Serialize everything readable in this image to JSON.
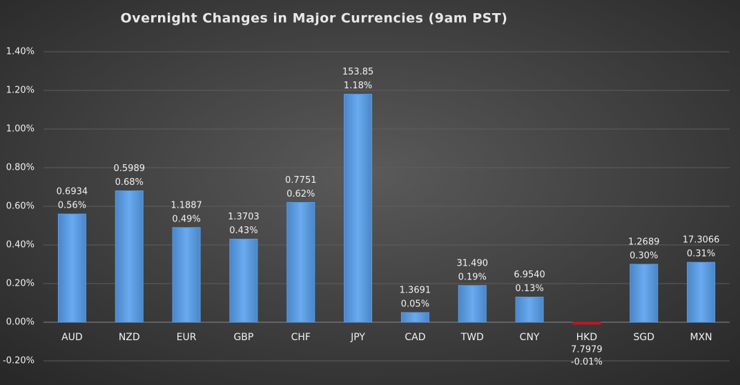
{
  "chart_data": {
    "type": "bar",
    "title": "Overnight Changes in Major Currencies (9am PST)",
    "categories": [
      "AUD",
      "NZD",
      "EUR",
      "GBP",
      "CHF",
      "JPY",
      "CAD",
      "TWD",
      "CNY",
      "HKD",
      "SGD",
      "MXN"
    ],
    "values": [
      0.56,
      0.68,
      0.49,
      0.43,
      0.62,
      1.18,
      0.05,
      0.19,
      0.13,
      -0.01,
      0.3,
      0.31
    ],
    "value_labels": [
      "0.56%",
      "0.68%",
      "0.49%",
      "0.43%",
      "0.62%",
      "1.18%",
      "0.05%",
      "0.19%",
      "0.13%",
      "-0.01%",
      "0.30%",
      "0.31%"
    ],
    "rates": [
      "0.6934",
      "0.5989",
      "1.1887",
      "1.3703",
      "0.7751",
      "153.85",
      "1.3691",
      "31.490",
      "6.9540",
      "7.7979",
      "1.2689",
      "17.3066"
    ],
    "color": "#5b9ee6",
    "negative_color": "#c8151b",
    "ylim": [
      -0.2,
      1.4
    ],
    "yticks": [
      {
        "value": -0.2,
        "label": "-0.20%"
      },
      {
        "value": 0,
        "label": "0.00%"
      },
      {
        "value": 0.2,
        "label": "0.20%"
      },
      {
        "value": 0.4,
        "label": "0.40%"
      },
      {
        "value": 0.6,
        "label": "0.60%"
      },
      {
        "value": 0.8,
        "label": "0.80%"
      },
      {
        "value": 1.0,
        "label": "1.00%"
      },
      {
        "value": 1.2,
        "label": "1.20%"
      },
      {
        "value": 1.4,
        "label": "1.40%"
      }
    ],
    "grid": true
  }
}
